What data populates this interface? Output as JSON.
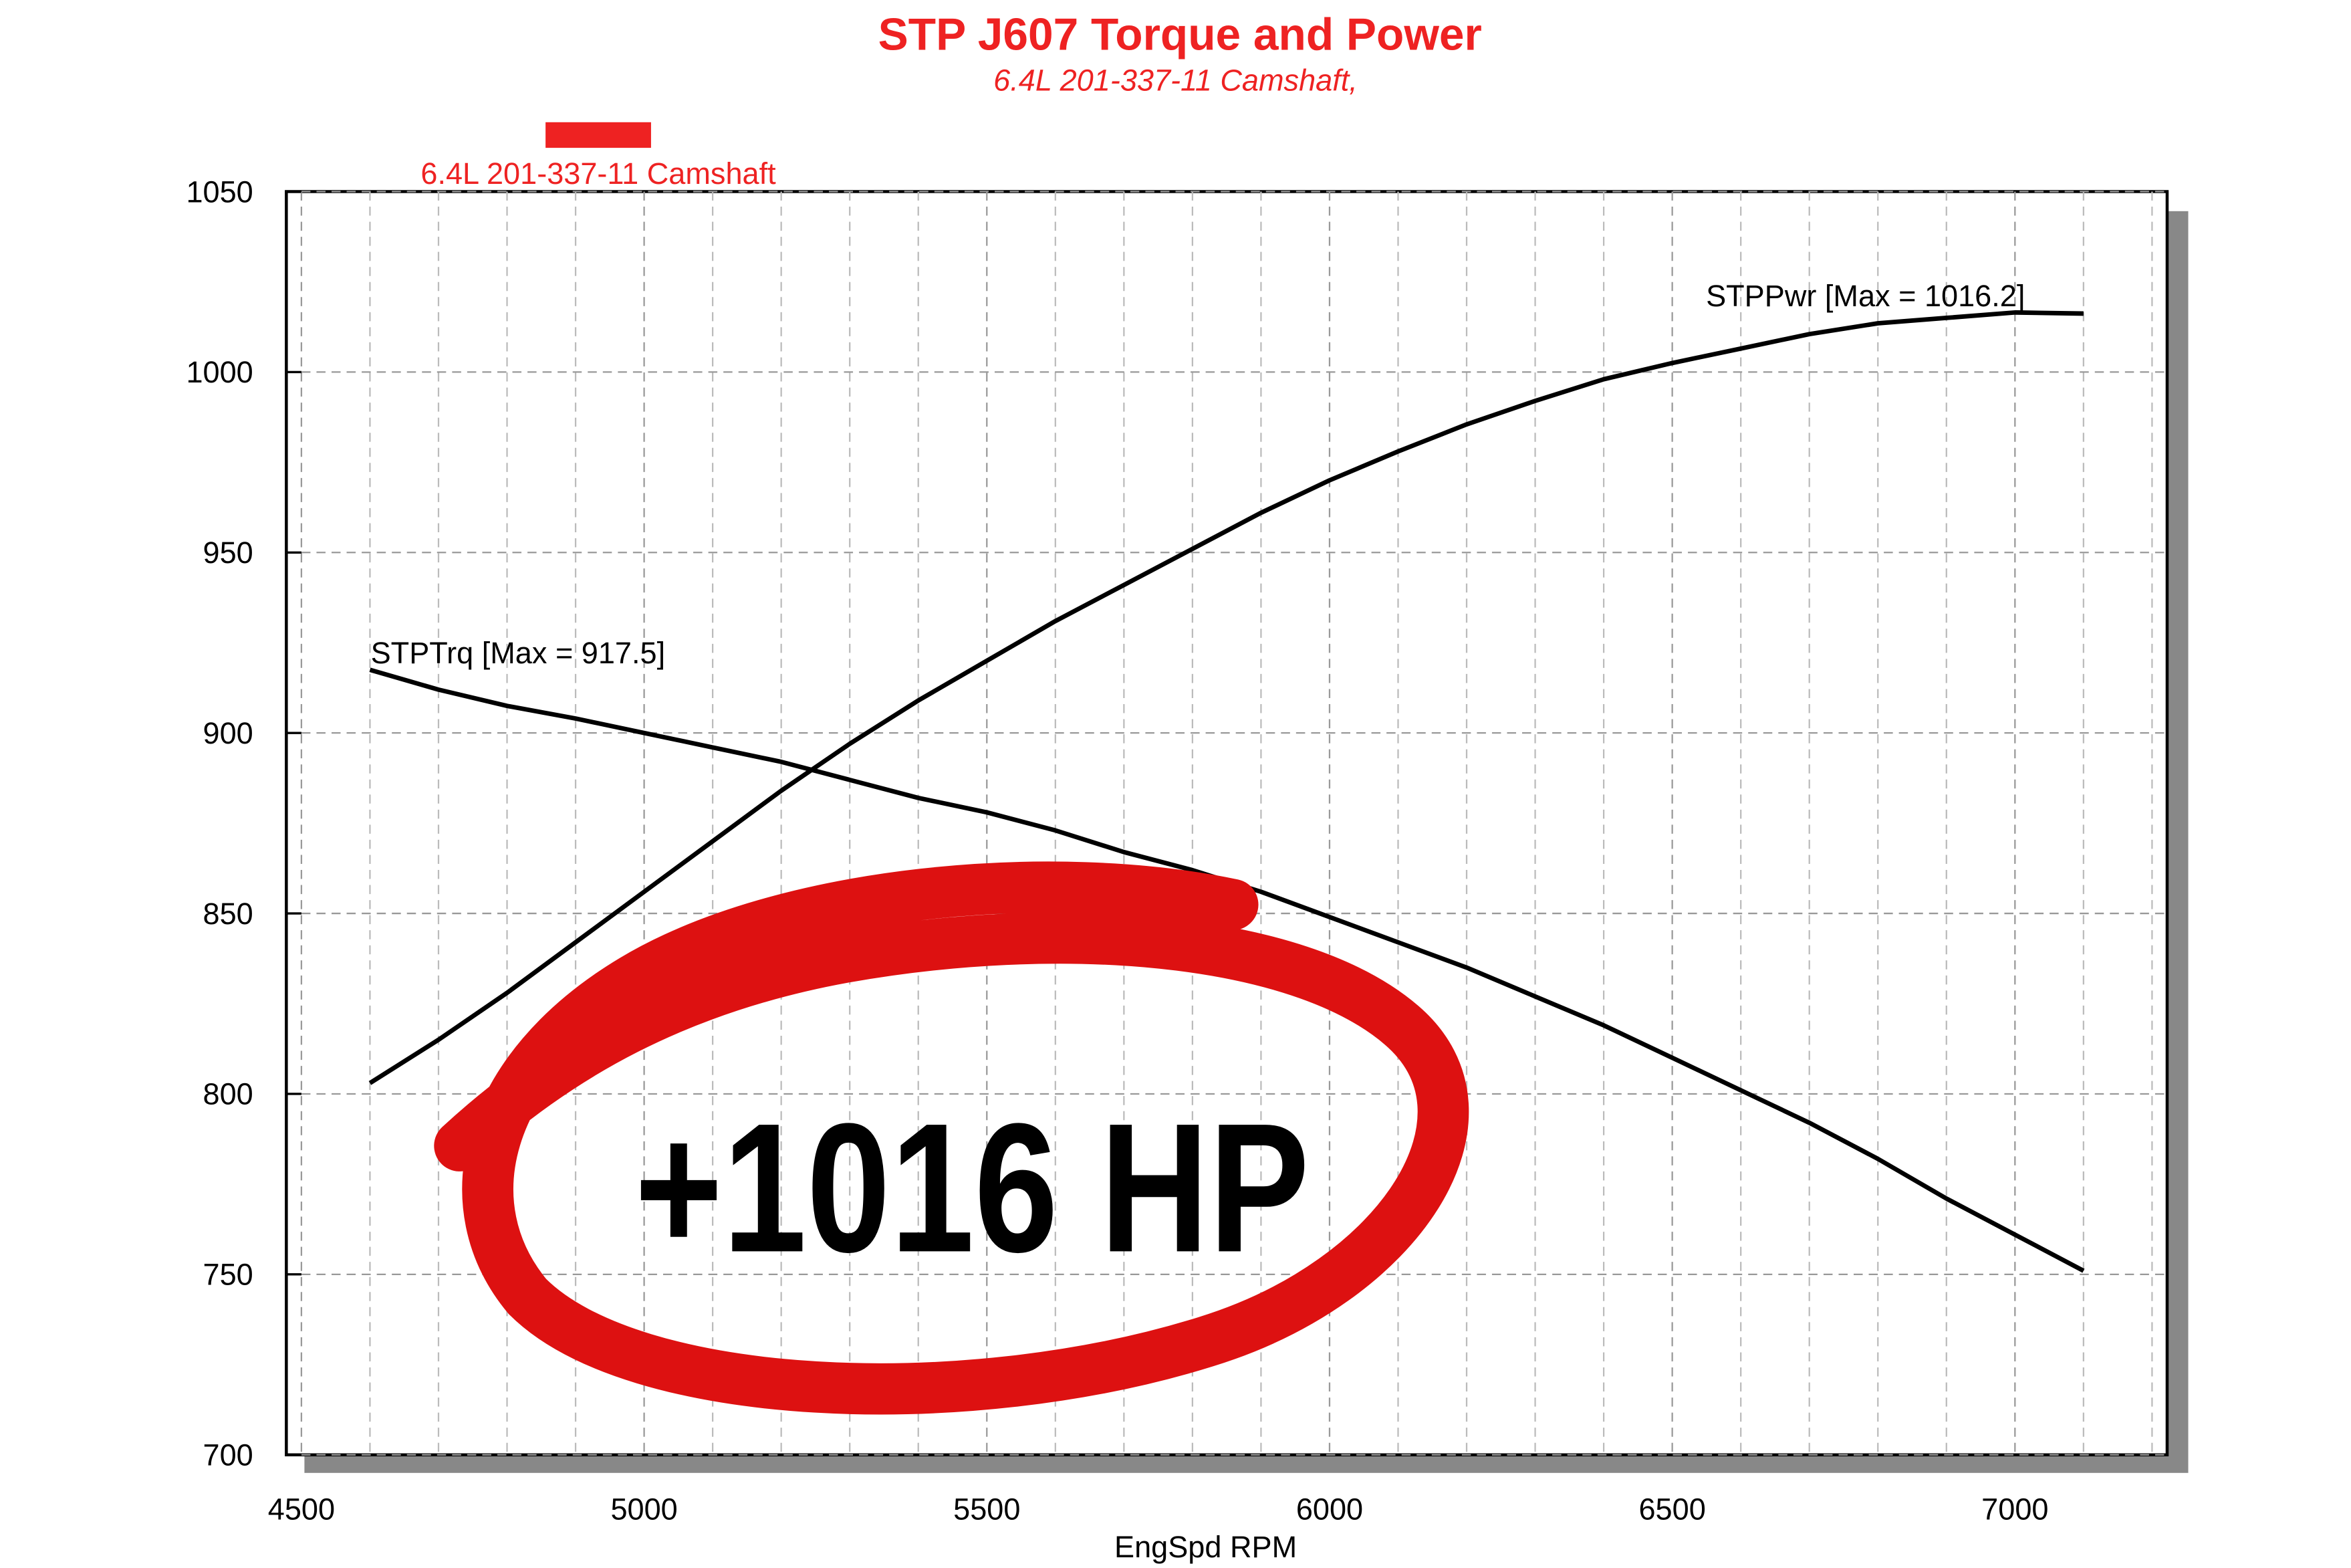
{
  "chart_data": {
    "type": "line",
    "title": "STP J607 Torque and Power",
    "subtitle": "6.4L 201-337-11 Camshaft,",
    "legend": {
      "label": "6.4L 201-337-11 Camshaft",
      "color": "#ee2222",
      "position": "top-left"
    },
    "x_label": "EngSpd RPM",
    "x": [
      4600,
      4700,
      4800,
      4900,
      5000,
      5100,
      5200,
      5300,
      5400,
      5500,
      5600,
      5700,
      5800,
      5900,
      6000,
      6100,
      6200,
      6300,
      6400,
      6500,
      6600,
      6700,
      6800,
      6900,
      7000,
      7100
    ],
    "series": [
      {
        "name": "STPTrq [Max = 917.5]",
        "color": "#000000",
        "values": [
          917.5,
          912,
          907.5,
          904,
          900,
          896,
          892,
          887,
          882,
          878,
          873,
          867,
          862,
          856,
          849,
          842,
          835,
          827,
          819,
          810,
          801,
          792,
          782,
          771,
          761,
          751
        ]
      },
      {
        "name": "STPPwr [Max = 1016.2]",
        "color": "#000000",
        "values": [
          803,
          815,
          828,
          842,
          856,
          870,
          884,
          897,
          909,
          920,
          931,
          941,
          951,
          961,
          970,
          978,
          985.5,
          992,
          998,
          1002.5,
          1006.5,
          1010.5,
          1013.5,
          1015,
          1016.5,
          1016.2
        ]
      }
    ],
    "annotation": "+1016 HP",
    "xlim": [
      4478,
      7222
    ],
    "xticks": [
      4500,
      5000,
      5500,
      6000,
      6500,
      7000
    ],
    "xminorticks": [
      4600,
      4700,
      4800,
      4900,
      5100,
      5200,
      5300,
      5400,
      5600,
      5700,
      5800,
      5900,
      6100,
      6200,
      6300,
      6400,
      6600,
      6700,
      6800,
      6900,
      7100,
      7200
    ],
    "ylim": [
      700,
      1050
    ],
    "yticks": [
      700,
      750,
      800,
      850,
      900,
      950,
      1000,
      1050
    ],
    "grid": true
  }
}
